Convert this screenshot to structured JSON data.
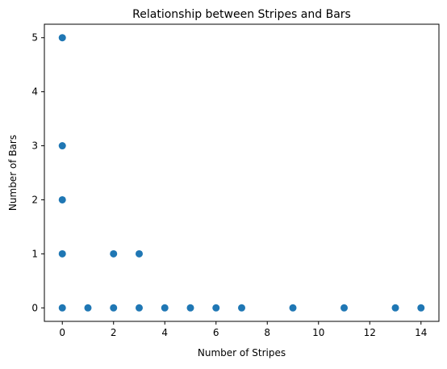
{
  "chart_data": {
    "type": "scatter",
    "title": "Relationship between Stripes and Bars",
    "xlabel": "Number of Stripes",
    "ylabel": "Number of Bars",
    "xlim": [
      -0.7,
      14.7
    ],
    "ylim": [
      -0.25,
      5.25
    ],
    "xticks": [
      0,
      2,
      4,
      6,
      8,
      10,
      12,
      14
    ],
    "yticks": [
      0,
      1,
      2,
      3,
      4,
      5
    ],
    "grid": false,
    "legend": false,
    "marker_color": "#1f77b4",
    "points": [
      {
        "x": 0,
        "y": 5
      },
      {
        "x": 0,
        "y": 3
      },
      {
        "x": 0,
        "y": 2
      },
      {
        "x": 0,
        "y": 1
      },
      {
        "x": 0,
        "y": 0
      },
      {
        "x": 1,
        "y": 0
      },
      {
        "x": 2,
        "y": 1
      },
      {
        "x": 2,
        "y": 0
      },
      {
        "x": 3,
        "y": 1
      },
      {
        "x": 3,
        "y": 0
      },
      {
        "x": 4,
        "y": 0
      },
      {
        "x": 5,
        "y": 0
      },
      {
        "x": 6,
        "y": 0
      },
      {
        "x": 7,
        "y": 0
      },
      {
        "x": 9,
        "y": 0
      },
      {
        "x": 11,
        "y": 0
      },
      {
        "x": 13,
        "y": 0
      },
      {
        "x": 14,
        "y": 0
      }
    ]
  }
}
